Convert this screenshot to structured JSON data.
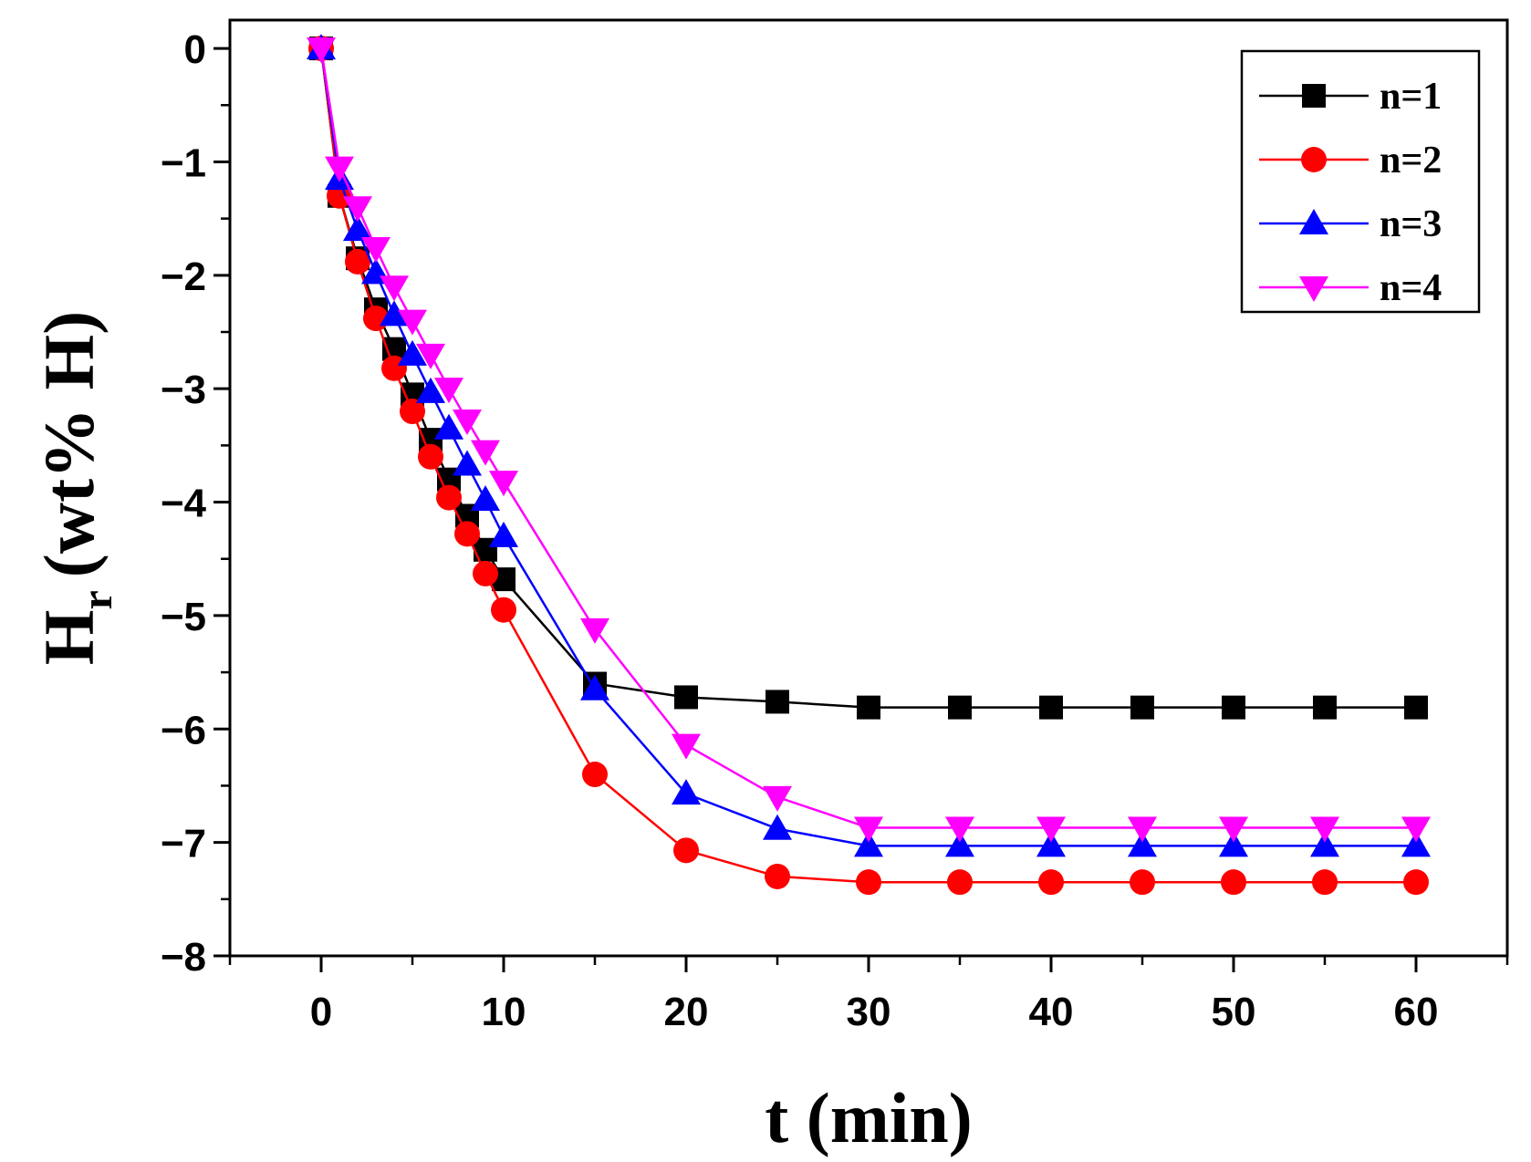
{
  "chart_data": {
    "type": "line",
    "title": "",
    "xlabel": "t (min)",
    "ylabel": {
      "main": "H",
      "subscript": "r",
      "units": "(wt% H)"
    },
    "xlim": [
      -5,
      65
    ],
    "ylim": [
      -8,
      0.25
    ],
    "xticks": [
      0,
      10,
      20,
      30,
      40,
      50,
      60
    ],
    "xtick_labels": [
      "0",
      "10",
      "20",
      "30",
      "40",
      "50",
      "60"
    ],
    "yticks": [
      0,
      -1,
      -2,
      -3,
      -4,
      -5,
      -6,
      -7,
      -8
    ],
    "ytick_labels": [
      "0",
      "−1",
      "−2",
      "−3",
      "−4",
      "−5",
      "−6",
      "−7",
      "−8"
    ],
    "grid": false,
    "legend_position": "top-right",
    "x": [
      0,
      1,
      2,
      3,
      4,
      5,
      6,
      7,
      8,
      9,
      10,
      15,
      20,
      25,
      30,
      35,
      40,
      45,
      50,
      55,
      60
    ],
    "series": [
      {
        "name": "n=1",
        "color": "#000000",
        "marker": "square",
        "values": [
          0,
          -1.3,
          -1.85,
          -2.3,
          -2.65,
          -3.05,
          -3.45,
          -3.8,
          -4.12,
          -4.42,
          -4.68,
          -5.6,
          -5.72,
          -5.76,
          -5.81,
          -5.81,
          -5.81,
          -5.81,
          -5.81,
          -5.81,
          -5.81
        ]
      },
      {
        "name": "n=2",
        "color": "#ff0000",
        "marker": "circle",
        "values": [
          0,
          -1.3,
          -1.88,
          -2.38,
          -2.82,
          -3.2,
          -3.6,
          -3.96,
          -4.28,
          -4.63,
          -4.95,
          -6.4,
          -7.07,
          -7.3,
          -7.35,
          -7.35,
          -7.35,
          -7.35,
          -7.35,
          -7.35,
          -7.35
        ]
      },
      {
        "name": "n=3",
        "color": "#0000ff",
        "marker": "triangle-up",
        "values": [
          0,
          -1.15,
          -1.6,
          -1.98,
          -2.35,
          -2.7,
          -3.03,
          -3.35,
          -3.67,
          -3.98,
          -4.3,
          -5.65,
          -6.57,
          -6.88,
          -7.03,
          -7.03,
          -7.03,
          -7.03,
          -7.03,
          -7.03,
          -7.03
        ]
      },
      {
        "name": "n=4",
        "color": "#ff00ff",
        "marker": "triangle-down",
        "values": [
          0,
          -1.05,
          -1.4,
          -1.76,
          -2.1,
          -2.4,
          -2.7,
          -3.0,
          -3.28,
          -3.55,
          -3.82,
          -5.12,
          -6.14,
          -6.6,
          -6.87,
          -6.87,
          -6.87,
          -6.87,
          -6.87,
          -6.87,
          -6.87
        ]
      }
    ]
  }
}
